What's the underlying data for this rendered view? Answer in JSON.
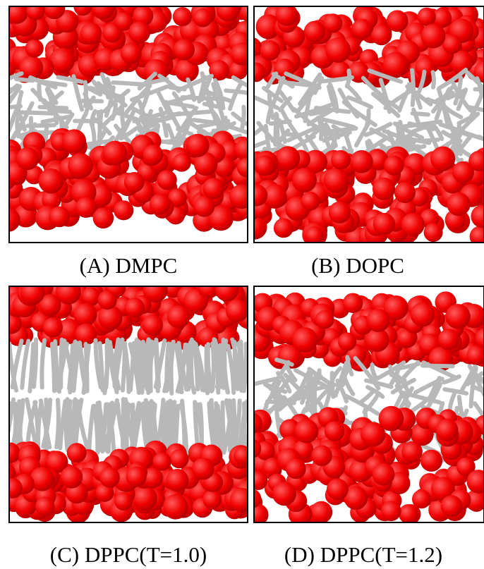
{
  "panels": [
    {
      "label": "(A) DMPC"
    },
    {
      "label": "(B) DOPC"
    },
    {
      "label": "(C) DPPC(T=1.0)"
    },
    {
      "label": "(D) DPPC(T=1.2)"
    }
  ]
}
